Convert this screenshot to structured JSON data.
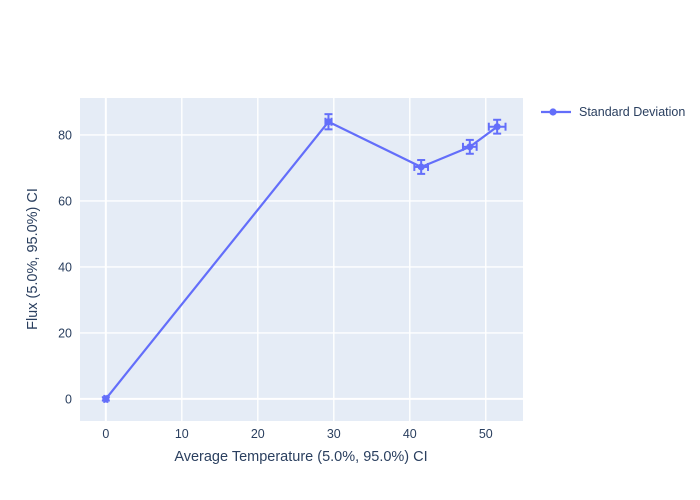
{
  "chart_data": {
    "type": "line",
    "title": "",
    "xlabel": "Average Temperature (5.0%, 95.0%) CI",
    "ylabel": "Flux (5.0%, 95.0%) CI",
    "xticks": [
      0,
      10,
      20,
      30,
      40,
      50
    ],
    "yticks": [
      0,
      20,
      40,
      60,
      80
    ],
    "xlim": [
      -3.4,
      54.9
    ],
    "ylim": [
      -6.7,
      91.2
    ],
    "grid": true,
    "legend_position": "top-right-outside",
    "series": [
      {
        "name": "Standard Deviation",
        "x": [
          0,
          29.3,
          41.5,
          47.9,
          51.5
        ],
        "y": [
          0,
          84,
          70.3,
          76.4,
          82.5
        ],
        "x_error": [
          0.2,
          0.4,
          0.9,
          0.9,
          1.1
        ],
        "y_error": [
          0.5,
          2.3,
          2.1,
          2.1,
          2.1
        ],
        "marker": "circle",
        "color": "#636EFA"
      }
    ],
    "colors": {
      "accent": "#636EFA",
      "plot_background": "#E5ECF6",
      "paper_background": "#FFFFFF",
      "grid": "#FFFFFF",
      "text": "#2A3F5F"
    }
  }
}
